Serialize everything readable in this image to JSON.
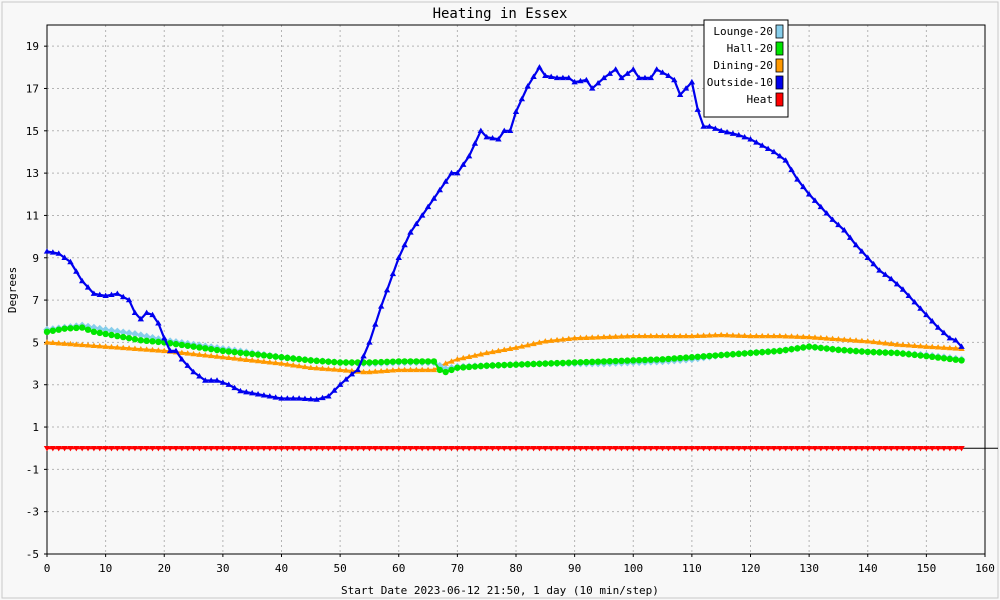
{
  "chart_data": {
    "type": "line",
    "title": "Heating in Essex",
    "xlabel": "Start Date 2023-06-12 21:50, 1 day (10 min/step)",
    "ylabel": "Degrees",
    "xlim": [
      0,
      160
    ],
    "ylim": [
      -5,
      20
    ],
    "x_ticks": [
      0,
      10,
      20,
      30,
      40,
      50,
      60,
      70,
      80,
      90,
      100,
      110,
      120,
      130,
      140,
      150,
      160
    ],
    "y_ticks": [
      -5,
      -3,
      -1,
      1,
      3,
      5,
      7,
      9,
      11,
      13,
      15,
      17,
      19
    ],
    "grid": true,
    "legend_position": "top-right",
    "series": [
      {
        "name": "Lounge-20",
        "color": "#87ceeb",
        "marker": "diamond",
        "points": [
          [
            0,
            5.6
          ],
          [
            3,
            5.7
          ],
          [
            6,
            5.8
          ],
          [
            10,
            5.6
          ],
          [
            15,
            5.4
          ],
          [
            20,
            5.1
          ],
          [
            25,
            4.9
          ],
          [
            30,
            4.7
          ],
          [
            35,
            4.5
          ],
          [
            40,
            4.3
          ],
          [
            45,
            4.15
          ],
          [
            50,
            4.05
          ],
          [
            55,
            4.0
          ],
          [
            60,
            4.05
          ],
          [
            66,
            4.05
          ],
          [
            68,
            3.75
          ],
          [
            70,
            3.85
          ],
          [
            75,
            3.9
          ],
          [
            80,
            3.95
          ],
          [
            85,
            4.0
          ],
          [
            90,
            4.0
          ],
          [
            95,
            4.0
          ],
          [
            100,
            4.05
          ],
          [
            105,
            4.1
          ],
          [
            110,
            4.2
          ],
          [
            115,
            4.4
          ],
          [
            120,
            4.5
          ],
          [
            125,
            4.6
          ],
          [
            130,
            4.8
          ],
          [
            135,
            4.65
          ],
          [
            140,
            4.55
          ],
          [
            145,
            4.5
          ],
          [
            150,
            4.4
          ],
          [
            156,
            4.2
          ]
        ]
      },
      {
        "name": "Hall-20",
        "color": "#00e600",
        "marker": "circle",
        "points": [
          [
            0,
            5.5
          ],
          [
            3,
            5.65
          ],
          [
            6,
            5.7
          ],
          [
            8,
            5.5
          ],
          [
            12,
            5.3
          ],
          [
            16,
            5.1
          ],
          [
            20,
            5.0
          ],
          [
            25,
            4.8
          ],
          [
            30,
            4.6
          ],
          [
            35,
            4.45
          ],
          [
            40,
            4.3
          ],
          [
            45,
            4.15
          ],
          [
            50,
            4.05
          ],
          [
            55,
            4.05
          ],
          [
            60,
            4.1
          ],
          [
            66,
            4.1
          ],
          [
            67,
            3.7
          ],
          [
            68,
            3.6
          ],
          [
            70,
            3.8
          ],
          [
            75,
            3.9
          ],
          [
            80,
            3.95
          ],
          [
            85,
            4.0
          ],
          [
            90,
            4.05
          ],
          [
            95,
            4.1
          ],
          [
            100,
            4.15
          ],
          [
            105,
            4.2
          ],
          [
            110,
            4.3
          ],
          [
            115,
            4.4
          ],
          [
            120,
            4.5
          ],
          [
            125,
            4.6
          ],
          [
            130,
            4.8
          ],
          [
            135,
            4.65
          ],
          [
            140,
            4.55
          ],
          [
            145,
            4.5
          ],
          [
            150,
            4.35
          ],
          [
            156,
            4.15
          ]
        ]
      },
      {
        "name": "Dining-20",
        "color": "#ff9900",
        "marker": "triangle",
        "points": [
          [
            0,
            5.0
          ],
          [
            5,
            4.9
          ],
          [
            10,
            4.8
          ],
          [
            15,
            4.7
          ],
          [
            20,
            4.6
          ],
          [
            25,
            4.45
          ],
          [
            30,
            4.3
          ],
          [
            35,
            4.15
          ],
          [
            40,
            4.0
          ],
          [
            45,
            3.8
          ],
          [
            50,
            3.7
          ],
          [
            54,
            3.6
          ],
          [
            55,
            3.6
          ],
          [
            60,
            3.7
          ],
          [
            66,
            3.7
          ],
          [
            68,
            4.0
          ],
          [
            70,
            4.2
          ],
          [
            75,
            4.5
          ],
          [
            80,
            4.75
          ],
          [
            85,
            5.05
          ],
          [
            90,
            5.2
          ],
          [
            95,
            5.25
          ],
          [
            100,
            5.3
          ],
          [
            105,
            5.3
          ],
          [
            110,
            5.3
          ],
          [
            115,
            5.35
          ],
          [
            120,
            5.3
          ],
          [
            125,
            5.3
          ],
          [
            130,
            5.25
          ],
          [
            135,
            5.15
          ],
          [
            140,
            5.05
          ],
          [
            145,
            4.9
          ],
          [
            150,
            4.8
          ],
          [
            156,
            4.7
          ]
        ]
      },
      {
        "name": "Outside-10",
        "color": "#0000ee",
        "marker": "triangle",
        "points": [
          [
            0,
            9.3
          ],
          [
            2,
            9.2
          ],
          [
            4,
            8.8
          ],
          [
            6,
            7.9
          ],
          [
            8,
            7.3
          ],
          [
            10,
            7.2
          ],
          [
            12,
            7.3
          ],
          [
            14,
            7.0
          ],
          [
            15,
            6.4
          ],
          [
            16,
            6.1
          ],
          [
            17,
            6.4
          ],
          [
            18,
            6.3
          ],
          [
            19,
            5.9
          ],
          [
            20,
            5.2
          ],
          [
            21,
            4.6
          ],
          [
            22,
            4.6
          ],
          [
            23,
            4.2
          ],
          [
            25,
            3.6
          ],
          [
            27,
            3.2
          ],
          [
            29,
            3.2
          ],
          [
            31,
            3.0
          ],
          [
            33,
            2.7
          ],
          [
            35,
            2.6
          ],
          [
            37,
            2.5
          ],
          [
            40,
            2.35
          ],
          [
            43,
            2.35
          ],
          [
            46,
            2.3
          ],
          [
            48,
            2.45
          ],
          [
            50,
            3.0
          ],
          [
            52,
            3.5
          ],
          [
            53,
            3.7
          ],
          [
            55,
            5.0
          ],
          [
            57,
            6.7
          ],
          [
            60,
            9.0
          ],
          [
            62,
            10.2
          ],
          [
            64,
            11.0
          ],
          [
            66,
            11.8
          ],
          [
            68,
            12.6
          ],
          [
            69,
            13.0
          ],
          [
            70,
            13.0
          ],
          [
            72,
            13.8
          ],
          [
            74,
            15.0
          ],
          [
            75,
            14.7
          ],
          [
            77,
            14.6
          ],
          [
            78,
            15.0
          ],
          [
            79,
            15.0
          ],
          [
            80,
            15.9
          ],
          [
            82,
            17.1
          ],
          [
            84,
            18.0
          ],
          [
            85,
            17.6
          ],
          [
            87,
            17.5
          ],
          [
            89,
            17.5
          ],
          [
            90,
            17.3
          ],
          [
            92,
            17.4
          ],
          [
            93,
            17.0
          ],
          [
            95,
            17.5
          ],
          [
            97,
            17.9
          ],
          [
            98,
            17.5
          ],
          [
            100,
            17.9
          ],
          [
            101,
            17.5
          ],
          [
            103,
            17.5
          ],
          [
            104,
            17.9
          ],
          [
            106,
            17.6
          ],
          [
            107,
            17.4
          ],
          [
            108,
            16.7
          ],
          [
            110,
            17.3
          ],
          [
            111,
            16.0
          ],
          [
            112,
            15.2
          ],
          [
            113,
            15.2
          ],
          [
            115,
            15.0
          ],
          [
            118,
            14.8
          ],
          [
            120,
            14.6
          ],
          [
            122,
            14.3
          ],
          [
            124,
            14.0
          ],
          [
            126,
            13.6
          ],
          [
            128,
            12.7
          ],
          [
            130,
            12.0
          ],
          [
            132,
            11.4
          ],
          [
            134,
            10.8
          ],
          [
            136,
            10.3
          ],
          [
            138,
            9.6
          ],
          [
            140,
            9.0
          ],
          [
            142,
            8.4
          ],
          [
            144,
            8.0
          ],
          [
            146,
            7.5
          ],
          [
            148,
            6.9
          ],
          [
            150,
            6.3
          ],
          [
            152,
            5.7
          ],
          [
            154,
            5.2
          ],
          [
            155,
            5.1
          ],
          [
            156,
            4.8
          ]
        ]
      },
      {
        "name": "Heat",
        "color": "#ff0000",
        "marker": "triangle-down",
        "points": [
          [
            0,
            0.0
          ],
          [
            156,
            0.0
          ]
        ]
      }
    ]
  }
}
